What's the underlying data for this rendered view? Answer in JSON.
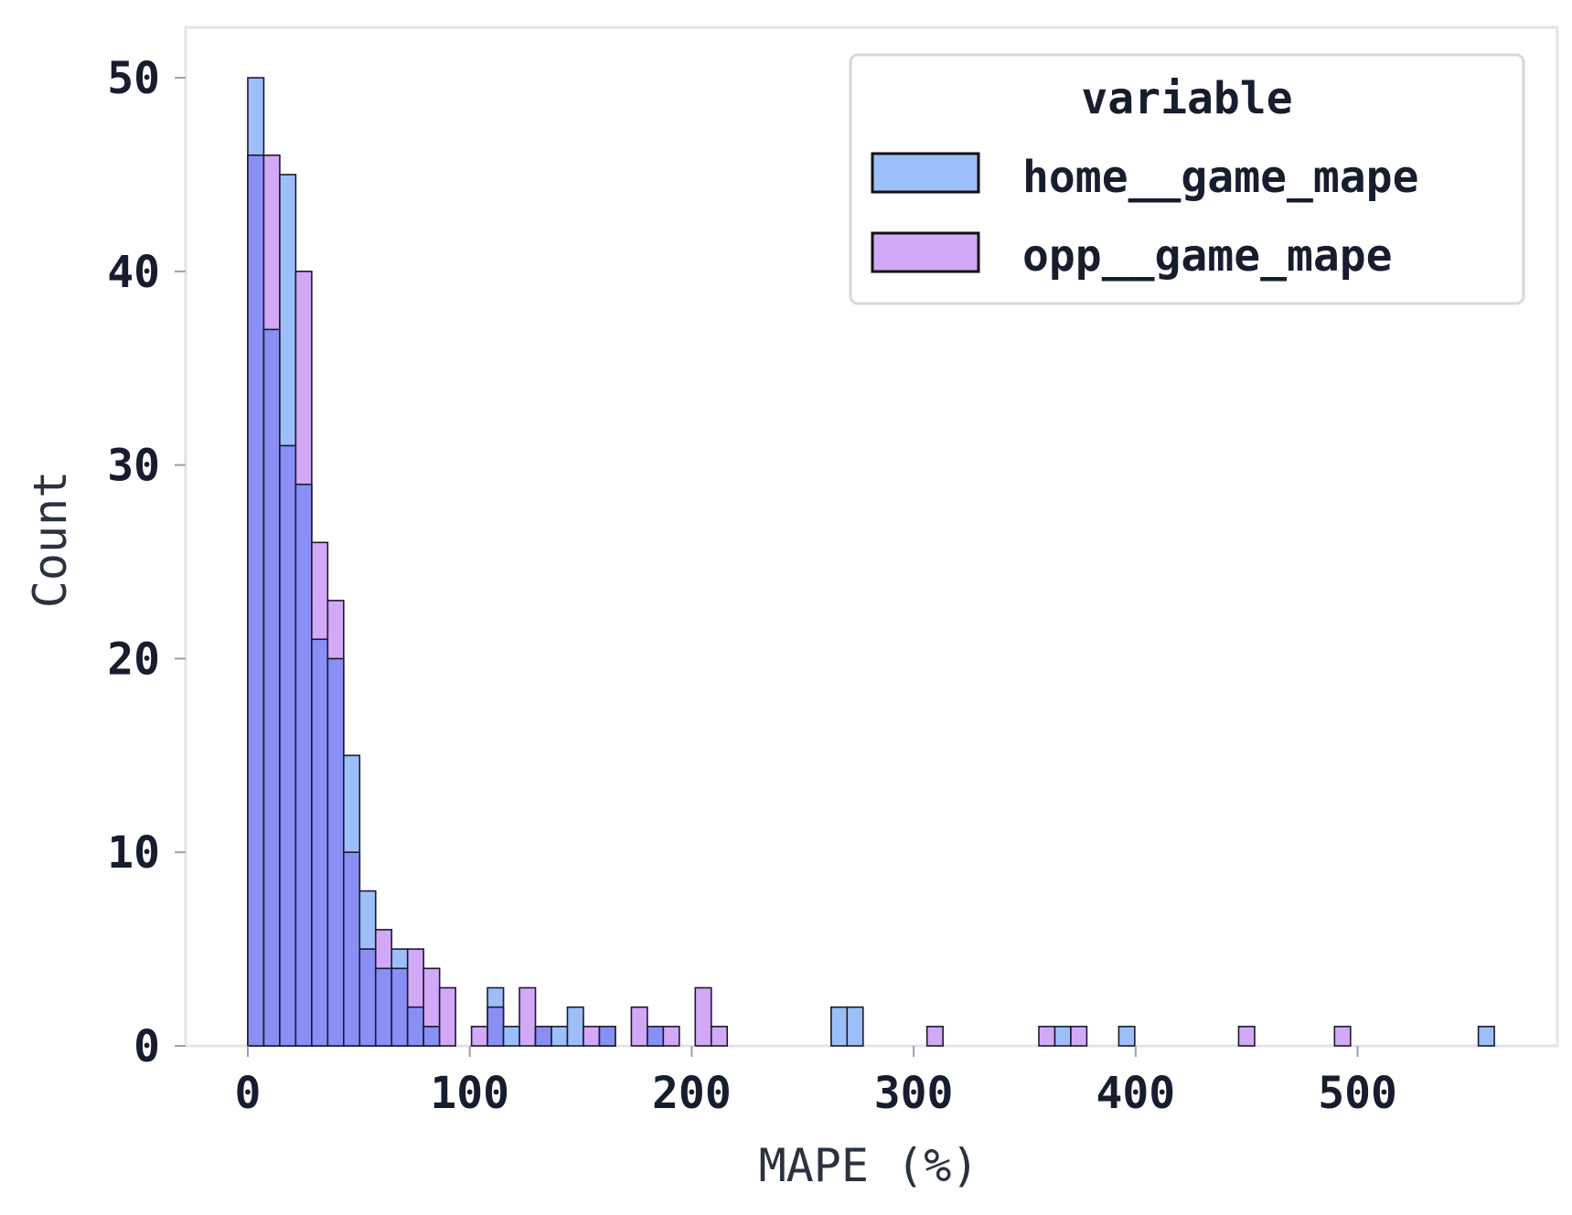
{
  "chart_data": {
    "type": "bar",
    "subtype": "overlaid-histogram",
    "title": "",
    "xlabel": "MAPE (%)",
    "ylabel": "Count",
    "xlim": [
      -28,
      590
    ],
    "ylim": [
      0,
      52.6
    ],
    "xticks": [
      0,
      100,
      200,
      300,
      400,
      500
    ],
    "yticks": [
      0,
      10,
      20,
      30,
      40,
      50
    ],
    "xtick_labels": [
      "0",
      "100",
      "200",
      "300",
      "400",
      "500"
    ],
    "ytick_labels": [
      "0",
      "10",
      "20",
      "30",
      "40",
      "50"
    ],
    "bin_width": 7.2,
    "grid": false,
    "legend": {
      "title": "variable",
      "placement": "top-right"
    },
    "overlap_color": "#8a8ff5",
    "series": [
      {
        "name": "home__game_mape",
        "color": "#9dbff9",
        "bins": [
          {
            "x": 0,
            "count": 50
          },
          {
            "x": 7.2,
            "count": 37
          },
          {
            "x": 14.4,
            "count": 45
          },
          {
            "x": 21.6,
            "count": 29
          },
          {
            "x": 28.8,
            "count": 21
          },
          {
            "x": 36,
            "count": 20
          },
          {
            "x": 43.2,
            "count": 15
          },
          {
            "x": 50.4,
            "count": 8
          },
          {
            "x": 57.6,
            "count": 4
          },
          {
            "x": 64.8,
            "count": 5
          },
          {
            "x": 72,
            "count": 2
          },
          {
            "x": 79.2,
            "count": 1
          },
          {
            "x": 108,
            "count": 3
          },
          {
            "x": 115.2,
            "count": 1
          },
          {
            "x": 129.6,
            "count": 1
          },
          {
            "x": 136.8,
            "count": 1
          },
          {
            "x": 144,
            "count": 2
          },
          {
            "x": 158.4,
            "count": 1
          },
          {
            "x": 180,
            "count": 1
          },
          {
            "x": 262.8,
            "count": 2
          },
          {
            "x": 270,
            "count": 2
          },
          {
            "x": 363.6,
            "count": 1
          },
          {
            "x": 392.4,
            "count": 1
          },
          {
            "x": 554.4,
            "count": 1
          }
        ]
      },
      {
        "name": "opp__game_mape",
        "color": "#d2a9f7",
        "bins": [
          {
            "x": 0,
            "count": 46
          },
          {
            "x": 7.2,
            "count": 46
          },
          {
            "x": 14.4,
            "count": 31
          },
          {
            "x": 21.6,
            "count": 40
          },
          {
            "x": 28.8,
            "count": 26
          },
          {
            "x": 36,
            "count": 23
          },
          {
            "x": 43.2,
            "count": 10
          },
          {
            "x": 50.4,
            "count": 5
          },
          {
            "x": 57.6,
            "count": 6
          },
          {
            "x": 64.8,
            "count": 4
          },
          {
            "x": 72,
            "count": 5
          },
          {
            "x": 79.2,
            "count": 4
          },
          {
            "x": 86.4,
            "count": 3
          },
          {
            "x": 100.8,
            "count": 1
          },
          {
            "x": 108,
            "count": 2
          },
          {
            "x": 122.4,
            "count": 3
          },
          {
            "x": 129.6,
            "count": 1
          },
          {
            "x": 151.2,
            "count": 1
          },
          {
            "x": 158.4,
            "count": 1
          },
          {
            "x": 172.8,
            "count": 2
          },
          {
            "x": 180,
            "count": 1
          },
          {
            "x": 187.2,
            "count": 1
          },
          {
            "x": 201.6,
            "count": 3
          },
          {
            "x": 208.8,
            "count": 1
          },
          {
            "x": 306,
            "count": 1
          },
          {
            "x": 356.4,
            "count": 1
          },
          {
            "x": 370.8,
            "count": 1
          },
          {
            "x": 446.4,
            "count": 1
          },
          {
            "x": 489.6,
            "count": 1
          }
        ]
      }
    ]
  }
}
